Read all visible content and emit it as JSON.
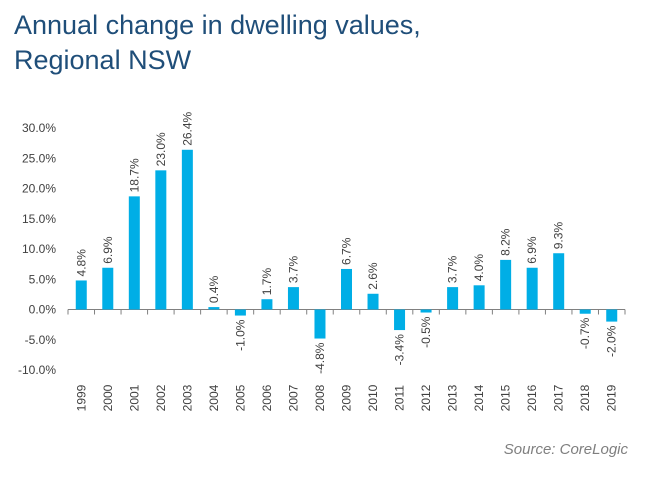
{
  "title": {
    "line1": "Annual change in dwelling values,",
    "line2": "Regional NSW"
  },
  "source": "Source: CoreLogic",
  "colors": {
    "bar": "#00aee6",
    "axis": "#808080",
    "text": "#404040",
    "title": "#1f4e79"
  },
  "chart_data": {
    "type": "bar",
    "title": "Annual change in dwelling values, Regional NSW",
    "xlabel": "",
    "ylabel": "",
    "ylim": [
      -10,
      30
    ],
    "yticks": [
      30,
      25,
      20,
      15,
      10,
      5,
      0,
      -5,
      -10
    ],
    "ytick_labels": [
      "30.0%",
      "25.0%",
      "20.0%",
      "15.0%",
      "10.0%",
      "5.0%",
      "0.0%",
      "-5.0%",
      "-10.0%"
    ],
    "grid": false,
    "categories": [
      "1999",
      "2000",
      "2001",
      "2002",
      "2003",
      "2004",
      "2005",
      "2006",
      "2007",
      "2008",
      "2009",
      "2010",
      "2011",
      "2012",
      "2013",
      "2014",
      "2015",
      "2016",
      "2017",
      "2018",
      "2019"
    ],
    "values": [
      4.8,
      6.9,
      18.7,
      23.0,
      26.4,
      0.4,
      -1.0,
      1.7,
      3.7,
      -4.8,
      6.7,
      2.6,
      -3.4,
      -0.5,
      3.7,
      4.0,
      8.2,
      6.9,
      9.3,
      -0.7,
      -2.0
    ],
    "data_labels": [
      "4.8%",
      "6.9%",
      "18.7%",
      "23.0%",
      "26.4%",
      "0.4%",
      "-1.0%",
      "1.7%",
      "3.7%",
      "-4.8%",
      "6.7%",
      "2.6%",
      "-3.4%",
      "-0.5%",
      "3.7%",
      "4.0%",
      "8.2%",
      "6.9%",
      "9.3%",
      "-0.7%",
      "-2.0%"
    ]
  }
}
